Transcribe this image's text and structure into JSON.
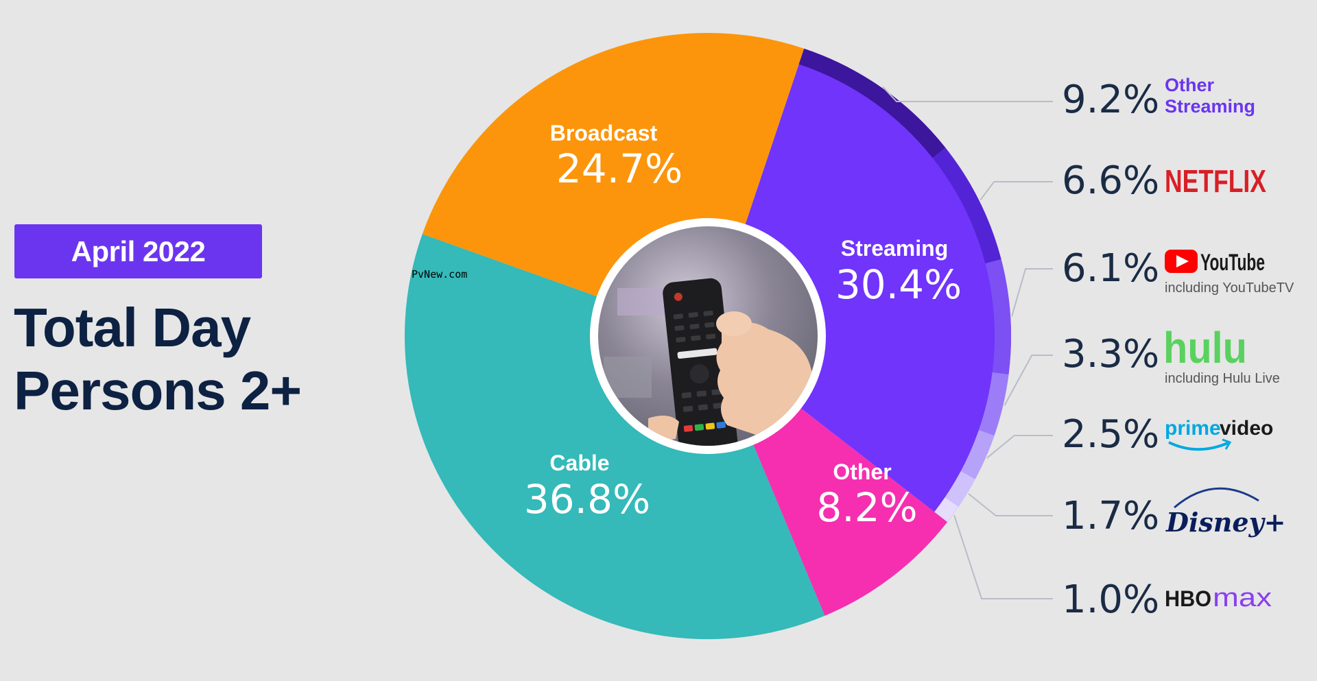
{
  "header": {
    "date": "April 2022",
    "title_line1": "Total Day",
    "title_line2": "Persons 2+"
  },
  "watermark": "PvNew.com",
  "chart_data": {
    "type": "pie",
    "style": "donut",
    "slices": [
      {
        "name": "Streaming",
        "value": 30.4,
        "color": "#7034fb"
      },
      {
        "name": "Other",
        "value": 8.2,
        "color": "#f52fb0"
      },
      {
        "name": "Cable",
        "value": 36.8,
        "color": "#35b9b9"
      },
      {
        "name": "Broadcast",
        "value": 24.7,
        "color": "#fc950b"
      }
    ],
    "labels": {
      "streaming": {
        "name": "Streaming",
        "pct": "30.4%"
      },
      "other": {
        "name": "Other",
        "pct": "8.2%"
      },
      "cable": {
        "name": "Cable",
        "pct": "36.8%"
      },
      "broadcast": {
        "name": "Broadcast",
        "pct": "24.7%"
      }
    },
    "streaming_breakdown": [
      {
        "name": "Other Streaming",
        "value": 9.2,
        "pct": "9.2%",
        "color": "#3c169c"
      },
      {
        "name": "Netflix",
        "value": 6.6,
        "pct": "6.6%",
        "color": "#5324d6"
      },
      {
        "name": "YouTube",
        "value": 6.1,
        "pct": "6.1%",
        "color": "#7c50f3"
      },
      {
        "name": "Hulu",
        "value": 3.3,
        "pct": "3.3%",
        "color": "#9c7df7"
      },
      {
        "name": "Prime Video",
        "value": 2.5,
        "pct": "2.5%",
        "color": "#b7a2fa"
      },
      {
        "name": "Disney+",
        "value": 1.7,
        "pct": "1.7%",
        "color": "#cfc2fc"
      },
      {
        "name": "HBO Max",
        "value": 1.0,
        "pct": "1.0%",
        "color": "#e5dcfe"
      }
    ],
    "logos": {
      "other_streaming_1": "Other",
      "other_streaming_2": "Streaming",
      "netflix": "NETFLIX",
      "youtube": "YouTube",
      "youtube_sub": "including YouTubeTV",
      "hulu": "hulu",
      "hulu_sub": "including Hulu Live",
      "prime_a": "prime",
      "prime_b": "video",
      "disney": "Disney+",
      "hbo": "HBO",
      "max": "max"
    }
  }
}
